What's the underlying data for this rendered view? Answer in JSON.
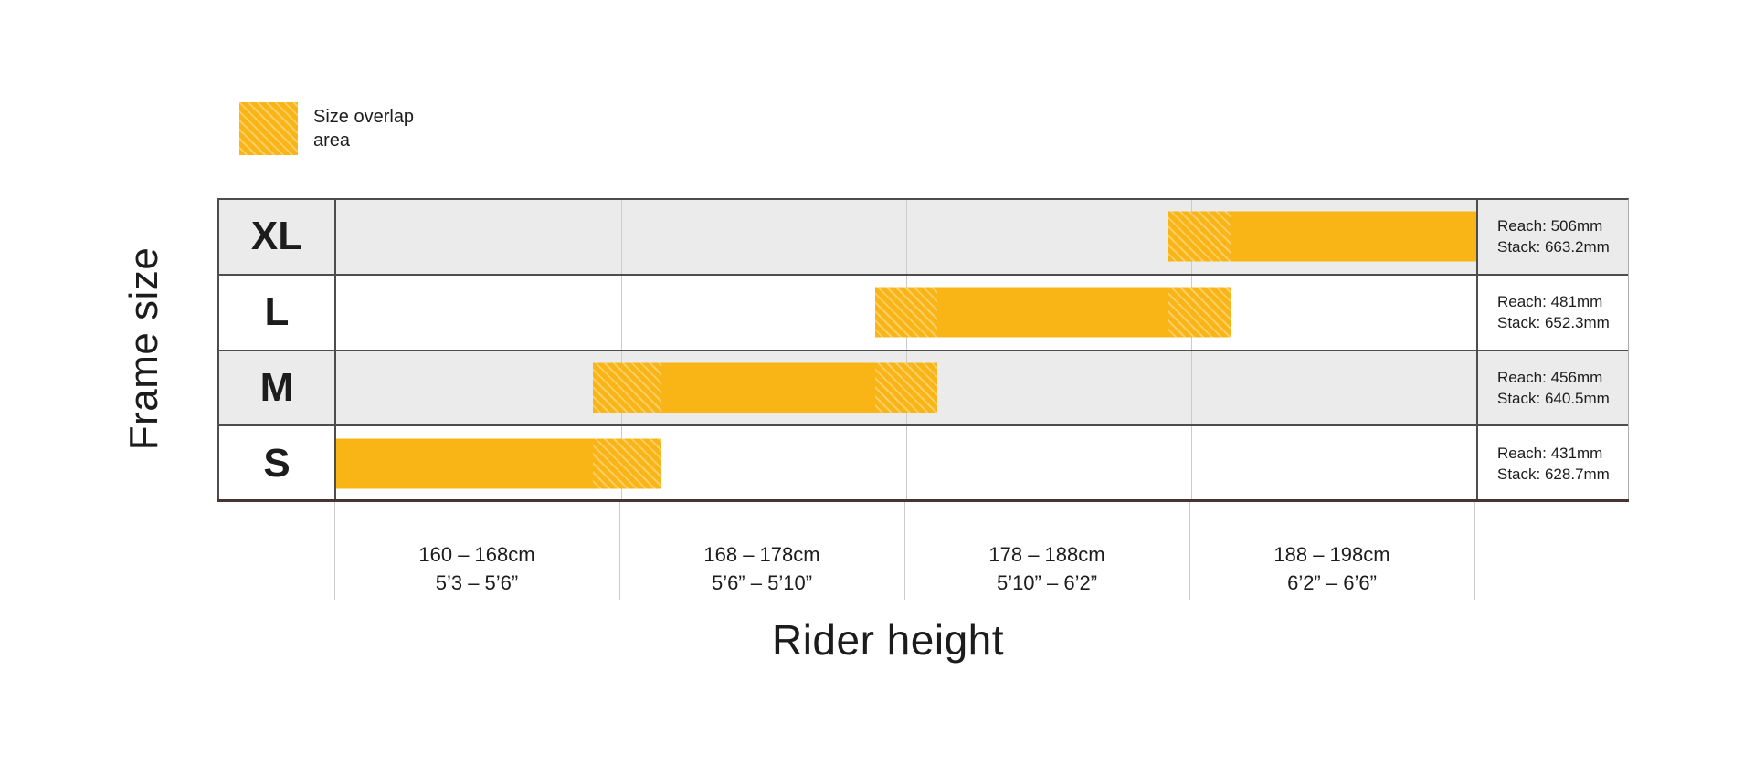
{
  "legend": {
    "line1": "Size overlap",
    "line2": "area"
  },
  "y_axis_title": "Frame size",
  "x_axis_title": "Rider height",
  "colors": {
    "bar": "#F9B415",
    "row_alt": "#EBEBEB",
    "grid": "#CBCBCB",
    "border": "#4D4D4D",
    "baseline": "#4A3433",
    "text": "#1C1C1C"
  },
  "chart_data": {
    "type": "bar",
    "orientation": "horizontal",
    "title": "",
    "xlabel": "Rider height",
    "ylabel": "Frame size",
    "legend_label": "Size overlap area",
    "grid": true,
    "x_domain_cm": [
      160,
      198
    ],
    "x_columns": [
      {
        "cm_label": "160 – 168cm",
        "ft_label": "5’3 – 5’6”",
        "from_cm": 160,
        "to_cm": 168
      },
      {
        "cm_label": "168 – 178cm",
        "ft_label": "5’6” – 5’10”",
        "from_cm": 168,
        "to_cm": 178
      },
      {
        "cm_label": "178 – 188cm",
        "ft_label": "5’10” – 6’2”",
        "from_cm": 178,
        "to_cm": 188
      },
      {
        "cm_label": "188 – 198cm",
        "ft_label": "6’2” – 6’6”",
        "from_cm": 188,
        "to_cm": 198
      }
    ],
    "rows": [
      {
        "size": "XL",
        "from_cm": 187.2,
        "to_cm": 198.0,
        "reach_text": "Reach: 506mm",
        "stack_text": "Stack: 663.2mm"
      },
      {
        "size": "L",
        "from_cm": 176.9,
        "to_cm": 189.4,
        "reach_text": "Reach: 481mm",
        "stack_text": "Stack: 652.3mm"
      },
      {
        "size": "M",
        "from_cm": 167.2,
        "to_cm": 179.1,
        "reach_text": "Reach: 456mm",
        "stack_text": "Stack: 640.5mm"
      },
      {
        "size": "S",
        "from_cm": 160.0,
        "to_cm": 169.4,
        "reach_text": "Reach: 431mm",
        "stack_text": "Stack: 628.7mm"
      }
    ],
    "overlap_semantics": "hatched segments mark the intersection of adjacent size ranges"
  }
}
